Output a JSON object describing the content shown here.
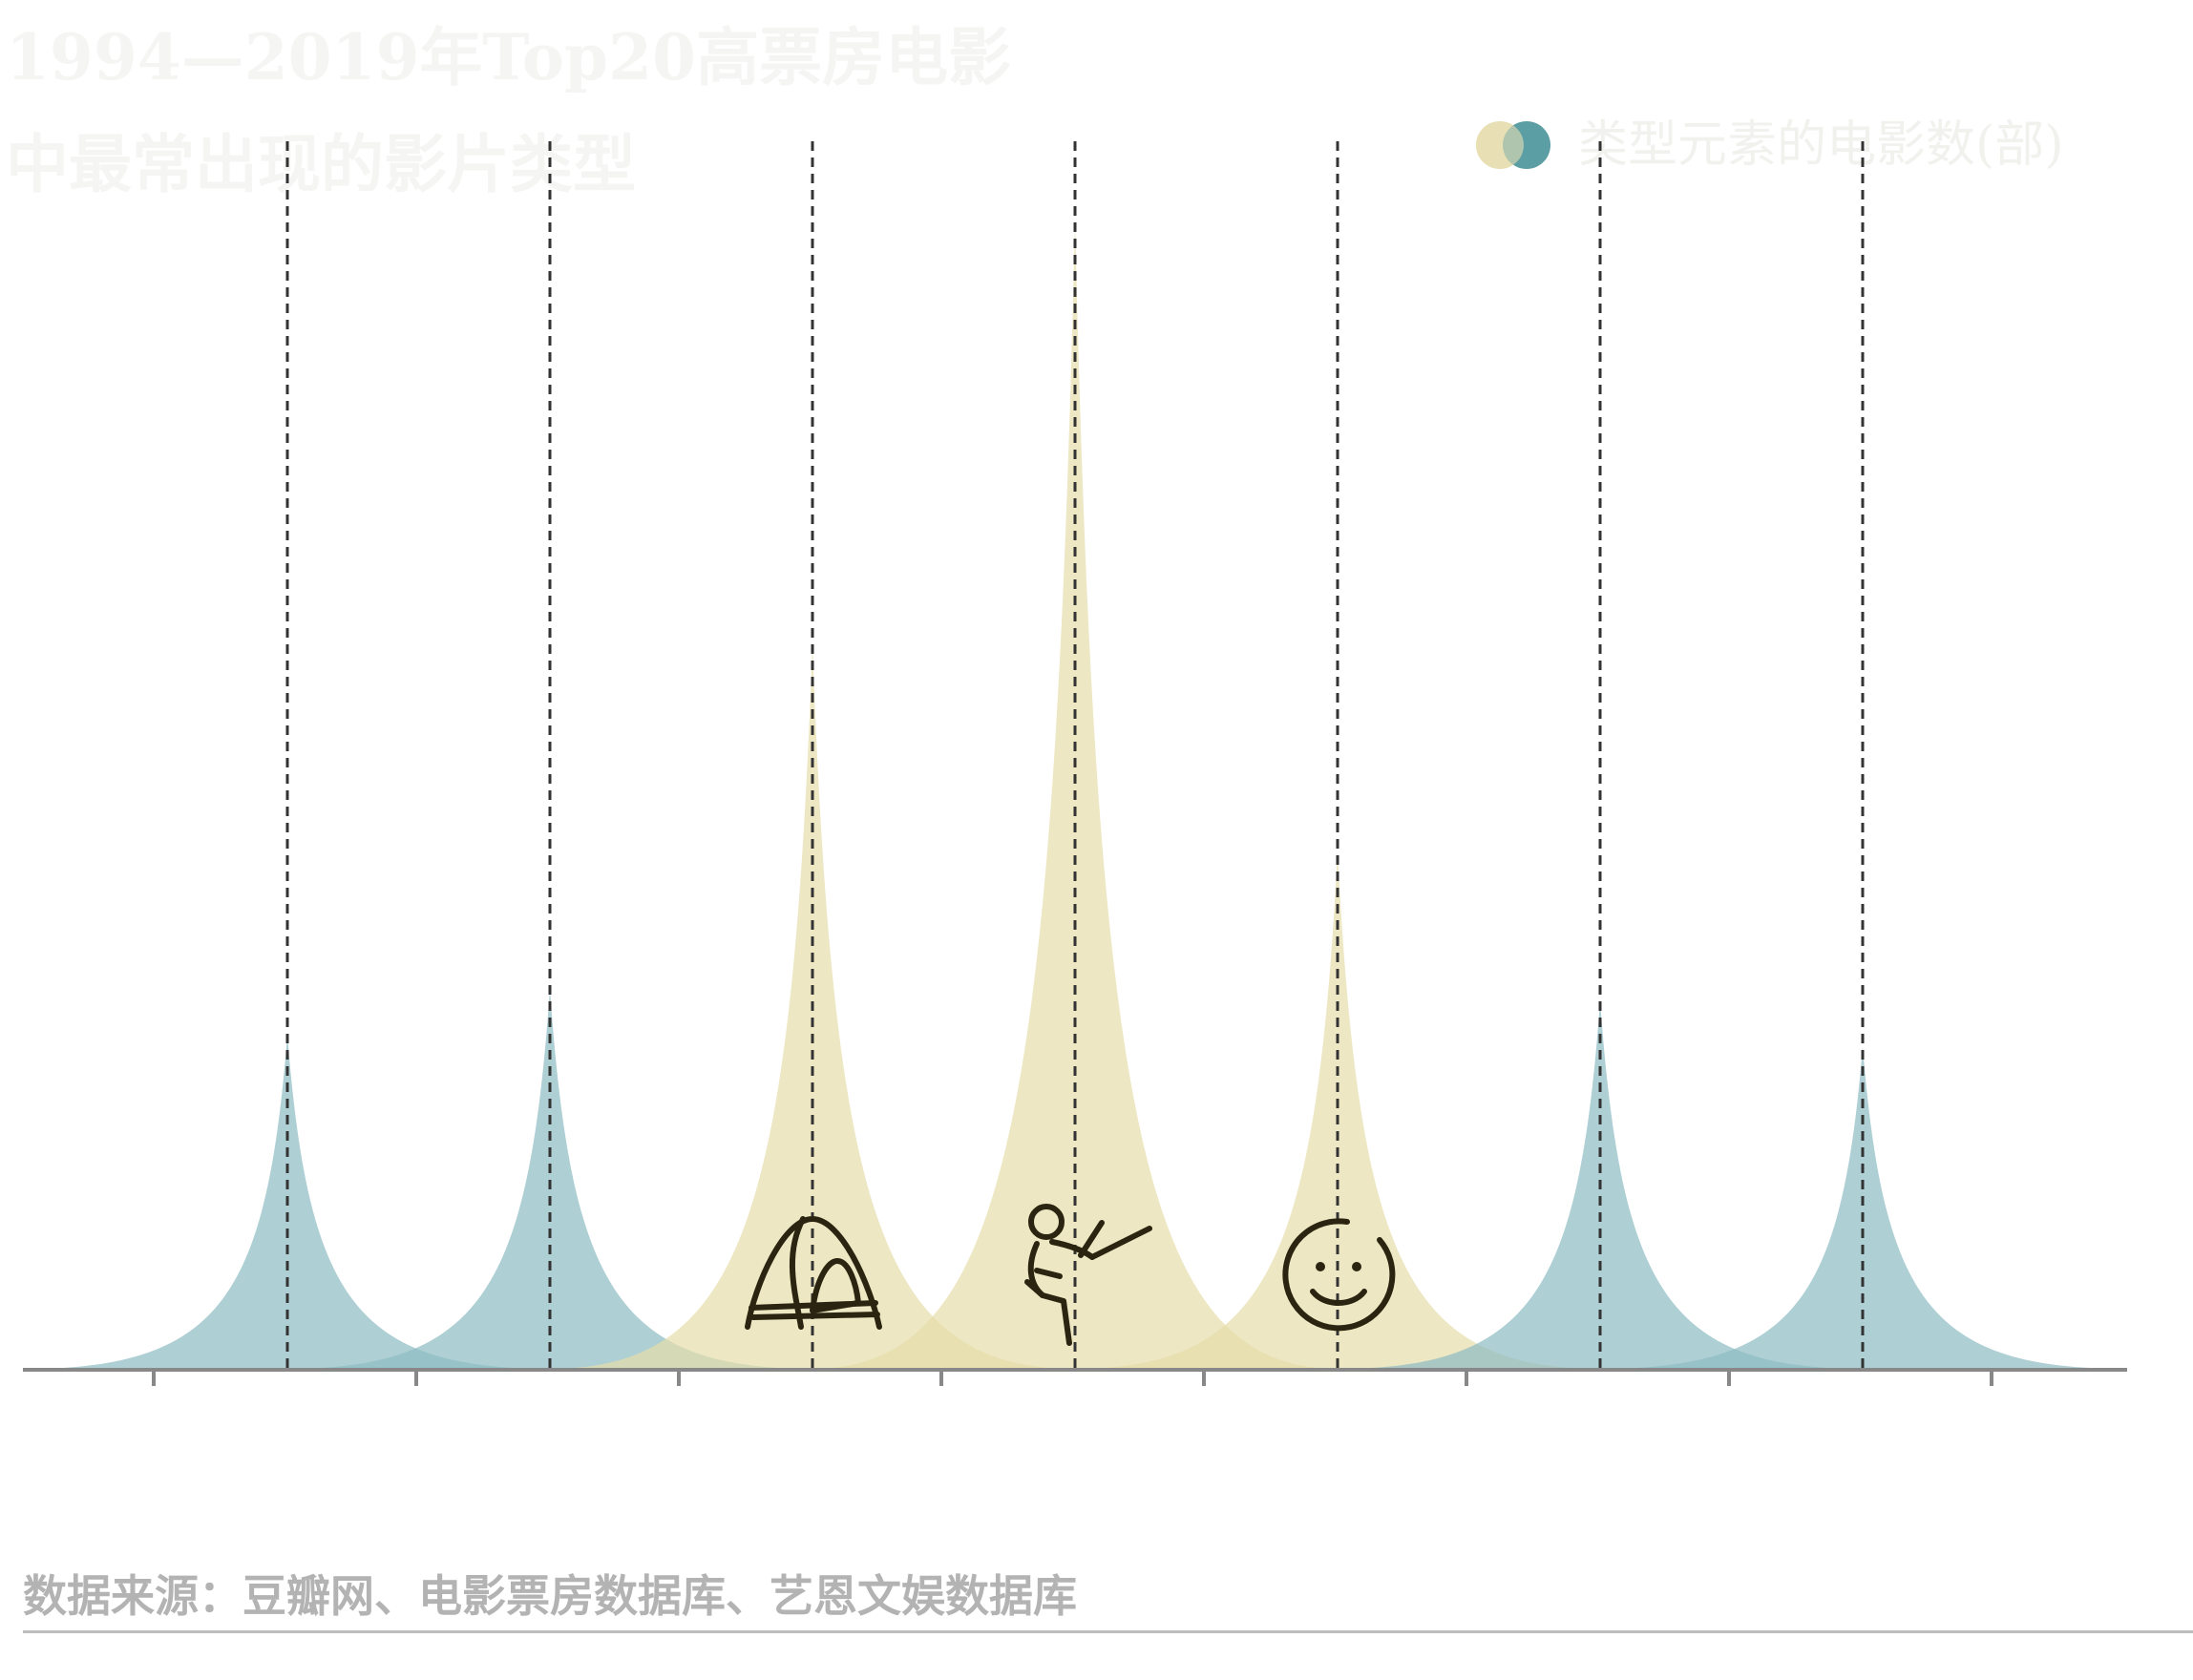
{
  "title_lines": [
    "1994—2019年Top20高票房电影",
    "中最常出现的影片类型"
  ],
  "legend": {
    "label": "类型元素的电影数(部)",
    "colors": [
      "#e8e0b4",
      "#5b9ea3"
    ]
  },
  "source": "数据来源：豆瓣网、电影票房数据库、艺恩文娱数据库",
  "colors": {
    "teal": "#8fbcc4",
    "khaki": "#e6ddaa",
    "icon": "#2b2410",
    "axis": "#888888",
    "dashed": "#333333"
  },
  "chart_data": {
    "type": "area",
    "x_axis_ticks": 8,
    "ylim": [
      0,
      100
    ],
    "series": [
      {
        "value": 29,
        "highlight": false,
        "icon": ""
      },
      {
        "value": 33,
        "highlight": false,
        "icon": ""
      },
      {
        "value": 63,
        "highlight": true,
        "icon": "tent-icon"
      },
      {
        "value": 100,
        "highlight": true,
        "icon": "martial-arts-kick-icon"
      },
      {
        "value": 45,
        "highlight": true,
        "icon": "smiley-icon"
      },
      {
        "value": 32,
        "highlight": false,
        "icon": ""
      },
      {
        "value": 28,
        "highlight": false,
        "icon": ""
      }
    ]
  }
}
